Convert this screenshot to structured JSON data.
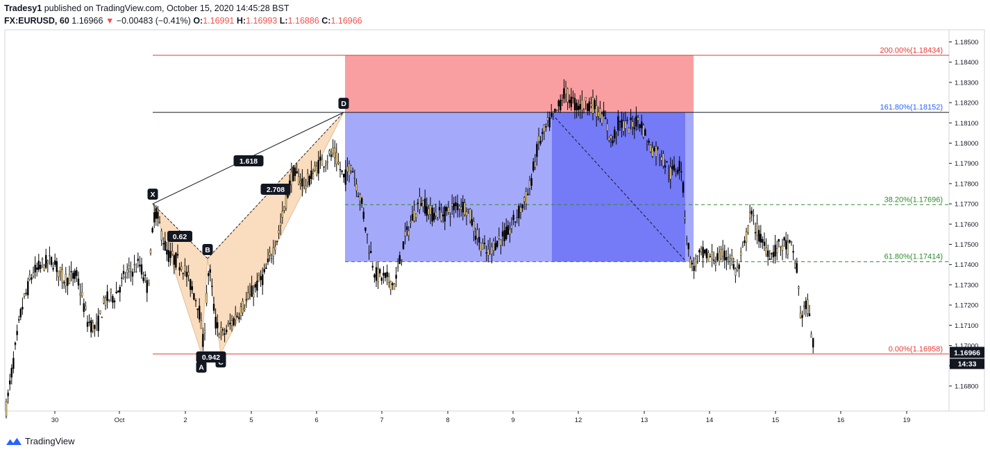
{
  "header": {
    "publisher_name": "Tradesy1",
    "publisher_suffix": "published on TradingView.com, October 15, 2020 14:45:28 BST",
    "symbol": "FX:EURUSD, 60",
    "last": "1.16966",
    "down_arrow": "▼",
    "change": "−0.00483 (−0.41%)",
    "o_label": "O:",
    "o_value": "1.16991",
    "h_label": "H:",
    "h_value": "1.16993",
    "l_label": "L:",
    "l_value": "1.16886",
    "c_label": "C:",
    "c_value": "1.16966"
  },
  "footer": {
    "brand": "TradingView"
  },
  "colors": {
    "up_candle": "#f2d389",
    "down_candle": "#000000",
    "stop_zone": "#f88e91",
    "target_zone": "#8e93f8",
    "target_zone_dark": "#5a61f5",
    "pattern_fill": "#f7c08a",
    "fib_red": "#e53935",
    "fib_blue": "#2962ff",
    "fib_green": "#2e8b2e"
  },
  "chart_data": {
    "type": "candlestick",
    "y_ticks": [
      "1.18500",
      "1.18400",
      "1.18300",
      "1.18200",
      "1.18100",
      "1.18000",
      "1.17900",
      "1.17800",
      "1.17700",
      "1.17600",
      "1.17500",
      "1.17400",
      "1.17300",
      "1.17200",
      "1.17100",
      "1.17000",
      "1.16900",
      "1.16800"
    ],
    "ylim": [
      1.1663,
      1.1855
    ],
    "x_ticks": [
      "30",
      "Oct",
      "2",
      "5",
      "6",
      "7",
      "8",
      "9",
      "12",
      "13",
      "14",
      "15",
      "16",
      "19"
    ],
    "last_price_label": "1.16966",
    "countdown_label": "14:33",
    "levels": [
      {
        "label": "200.00%(1.18434)",
        "price": 1.18434,
        "style": "solid",
        "color": "#e53935"
      },
      {
        "label": "161.80%(1.18152)",
        "price": 1.18152,
        "style": "solid",
        "color": "#2962ff"
      },
      {
        "label": "38.20%(1.17696)",
        "price": 1.17696,
        "style": "dashed",
        "color": "#2e8b2e"
      },
      {
        "label": "61.80%(1.17414)",
        "price": 1.17414,
        "style": "dashed",
        "color": "#2e8b2e"
      },
      {
        "label": "0.00%(1.16958)",
        "price": 1.16958,
        "style": "solid",
        "color": "#e53935"
      }
    ],
    "pattern": {
      "points": [
        {
          "name": "X",
          "price": 1.177
        },
        {
          "name": "A",
          "price": 1.16962
        },
        {
          "name": "B",
          "price": 1.1743
        },
        {
          "name": "C",
          "price": 1.1696
        },
        {
          "name": "D",
          "price": 1.18152
        }
      ],
      "ratios": [
        {
          "label": "1.618"
        },
        {
          "label": "2.708"
        },
        {
          "label": "0.62"
        },
        {
          "label": "0.942"
        }
      ]
    },
    "stop_zone": {
      "top": 1.18434,
      "bottom": 1.18152
    },
    "target_zone": {
      "top": 1.18152,
      "bottom": 1.17414
    }
  }
}
